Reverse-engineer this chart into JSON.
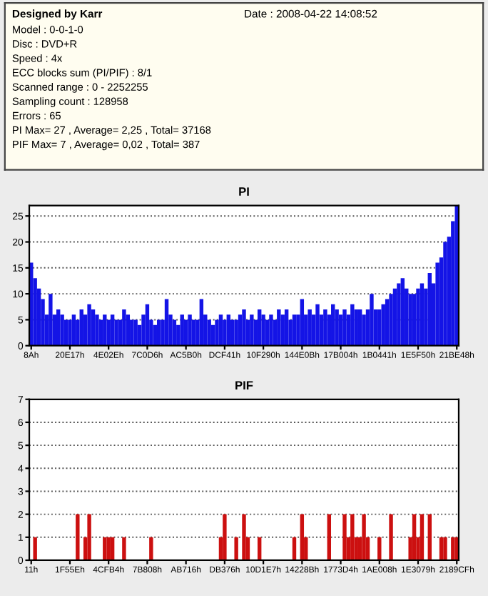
{
  "chart_data": [
    {
      "type": "other",
      "title": "Designed by Karr",
      "annotations": [
        "Date : 2008-04-22 14:08:52",
        "Model : 0-0-1-0",
        "Disc : DVD+R",
        "Speed : 4x",
        "ECC blocks sum (PI/PIF) : 8/1",
        "Scanned range : 0 - 2252255",
        "Sampling count : 128958",
        "Errors : 65",
        "PI Max= 27 , Average= 2,25 , Total= 37168",
        "PIF Max= 7 , Average= 0,02 , Total= 387"
      ]
    },
    {
      "type": "bar",
      "title": "PI",
      "color": "#1414e6",
      "ylim": [
        0,
        27
      ],
      "yticks": [
        0,
        5,
        10,
        15,
        20,
        25
      ],
      "grid": "y",
      "categories": [
        "8Ah",
        null,
        null,
        null,
        null,
        null,
        null,
        null,
        null,
        null,
        "20E17h",
        null,
        null,
        null,
        null,
        null,
        null,
        null,
        null,
        null,
        "4E02Eh",
        null,
        null,
        null,
        null,
        null,
        null,
        null,
        null,
        null,
        "7C0D6h",
        null,
        null,
        null,
        null,
        null,
        null,
        null,
        null,
        null,
        "AC5B0h",
        null,
        null,
        null,
        null,
        null,
        null,
        null,
        null,
        null,
        "DCF41h",
        null,
        null,
        null,
        null,
        null,
        null,
        null,
        null,
        null,
        "10F290h",
        null,
        null,
        null,
        null,
        null,
        null,
        null,
        null,
        null,
        "144E0Bh",
        null,
        null,
        null,
        null,
        null,
        null,
        null,
        null,
        null,
        "17B004h",
        null,
        null,
        null,
        null,
        null,
        null,
        null,
        null,
        null,
        "1B0441h",
        null,
        null,
        null,
        null,
        null,
        null,
        null,
        null,
        null,
        "1E5F50h",
        null,
        null,
        null,
        null,
        null,
        null,
        null,
        null,
        null,
        "21BE48h"
      ],
      "values": [
        16,
        13,
        11,
        9,
        6,
        10,
        6,
        7,
        6,
        5,
        5,
        6,
        5,
        7,
        6,
        8,
        7,
        6,
        5,
        6,
        5,
        6,
        5,
        5,
        7,
        6,
        5,
        5,
        4,
        6,
        8,
        5,
        4,
        5,
        5,
        9,
        6,
        5,
        4,
        6,
        5,
        6,
        5,
        5,
        9,
        6,
        5,
        4,
        5,
        6,
        5,
        6,
        5,
        5,
        6,
        7,
        5,
        6,
        5,
        7,
        6,
        5,
        6,
        5,
        7,
        6,
        7,
        5,
        6,
        6,
        9,
        6,
        7,
        6,
        8,
        6,
        7,
        6,
        8,
        7,
        6,
        7,
        6,
        8,
        7,
        7,
        6,
        7,
        10,
        7,
        7,
        8,
        9,
        10,
        11,
        12,
        13,
        11,
        10,
        10,
        11,
        12,
        11,
        14,
        12,
        16,
        17,
        20,
        21,
        24,
        27
      ]
    },
    {
      "type": "bar",
      "title": "PIF",
      "color": "#cc1010",
      "ylim": [
        0,
        7
      ],
      "yticks": [
        0,
        1,
        2,
        3,
        4,
        5,
        6,
        7
      ],
      "grid": "y",
      "categories": [
        "11h",
        null,
        null,
        null,
        null,
        null,
        null,
        null,
        null,
        null,
        "1F55Eh",
        null,
        null,
        null,
        null,
        null,
        null,
        null,
        null,
        null,
        "4CFB4h",
        null,
        null,
        null,
        null,
        null,
        null,
        null,
        null,
        null,
        "7B808h",
        null,
        null,
        null,
        null,
        null,
        null,
        null,
        null,
        null,
        "AB716h",
        null,
        null,
        null,
        null,
        null,
        null,
        null,
        null,
        null,
        "DB376h",
        null,
        null,
        null,
        null,
        null,
        null,
        null,
        null,
        null,
        "10D1E7h",
        null,
        null,
        null,
        null,
        null,
        null,
        null,
        null,
        null,
        "14228Bh",
        null,
        null,
        null,
        null,
        null,
        null,
        null,
        null,
        null,
        "1773D4h",
        null,
        null,
        null,
        null,
        null,
        null,
        null,
        null,
        null,
        "1AE008h",
        null,
        null,
        null,
        null,
        null,
        null,
        null,
        null,
        null,
        "1E3079h",
        null,
        null,
        null,
        null,
        null,
        null,
        null,
        null,
        null,
        "2189CFh"
      ],
      "values": [
        0,
        1,
        0,
        0,
        0,
        0,
        0,
        0,
        0,
        0,
        0,
        0,
        2,
        0,
        1,
        2,
        0,
        0,
        0,
        1,
        1,
        1,
        0,
        0,
        1,
        0,
        0,
        0,
        0,
        0,
        0,
        1,
        0,
        0,
        0,
        0,
        0,
        0,
        0,
        0,
        0,
        0,
        0,
        0,
        0,
        0,
        0,
        0,
        0,
        1,
        2,
        0,
        0,
        1,
        0,
        2,
        1,
        0,
        0,
        1,
        0,
        0,
        0,
        0,
        0,
        0,
        0,
        0,
        1,
        0,
        2,
        1,
        0,
        0,
        0,
        0,
        0,
        2,
        0,
        0,
        0,
        2,
        1,
        2,
        1,
        1,
        2,
        1,
        0,
        0,
        1,
        0,
        0,
        2,
        0,
        0,
        0,
        0,
        1,
        2,
        1,
        2,
        0,
        2,
        0,
        0,
        1,
        1,
        0,
        1,
        1
      ]
    }
  ]
}
